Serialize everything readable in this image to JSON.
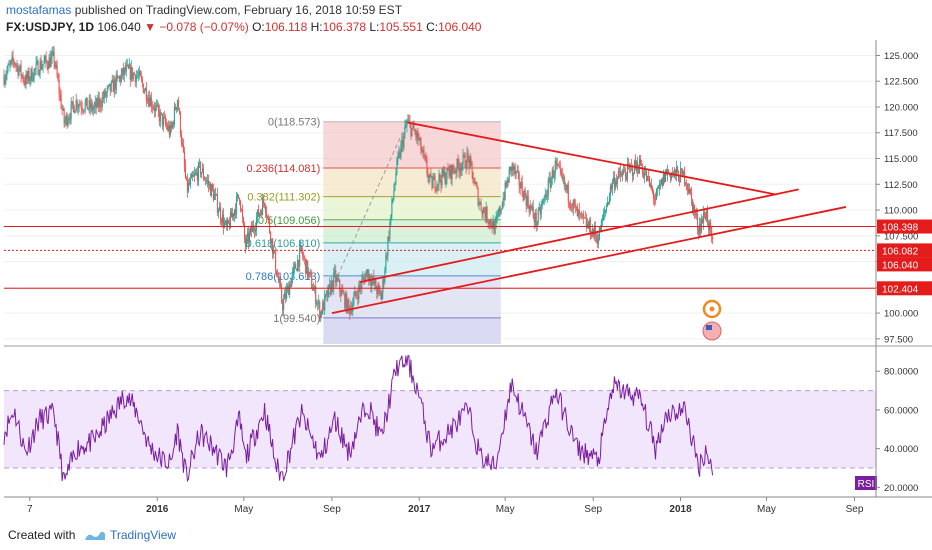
{
  "header": {
    "author": "mostafamas",
    "published_text": "published on TradingView.com, February 16, 2018 10:59 EST",
    "symbol": "FX:USDJPY, 1D",
    "last": "106.040",
    "change_arrow": "▼",
    "change": "−0.078 (−0.07%)",
    "o_label": "O:",
    "o_value": "106.118",
    "h_label": "H:",
    "h_value": "106.378",
    "l_label": "L:",
    "l_value": "105.551",
    "c_label": "C:",
    "c_value": "106.040"
  },
  "footer": {
    "created_with": "Created with",
    "brand": "TradingView"
  },
  "colors": {
    "candle_up": "#26a69a",
    "candle_down": "#ef5350",
    "trendline": "#e31b1b",
    "rsi_line": "#7b1fa2",
    "rsi_band": "#ede0fa",
    "price_tag": "#e31b1b"
  },
  "chart_data": [
    {
      "type": "candlestick",
      "symbol": "FX:USDJPY",
      "interval": "1D",
      "y_axis_ticks": [
        "125.000",
        "122.500",
        "120.000",
        "117.500",
        "115.000",
        "112.500",
        "110.000",
        "107.500",
        "105.000",
        "102.500",
        "100.000",
        "97.500"
      ],
      "ylim": [
        97.0,
        126.5
      ],
      "x_axis_ticks": [
        "7",
        "2016",
        "May",
        "Sep",
        "2017",
        "May",
        "Sep",
        "2018",
        "May",
        "Sep"
      ],
      "price_path": [
        [
          "2015-06-01",
          123.0
        ],
        [
          "2015-06-15",
          124.5
        ],
        [
          "2015-07-01",
          122.5
        ],
        [
          "2015-07-20",
          124.0
        ],
        [
          "2015-08-10",
          124.7
        ],
        [
          "2015-08-24",
          118.5
        ],
        [
          "2015-09-10",
          120.5
        ],
        [
          "2015-10-05",
          119.8
        ],
        [
          "2015-10-25",
          121.5
        ],
        [
          "2015-11-18",
          123.5
        ],
        [
          "2015-12-05",
          123.0
        ],
        [
          "2015-12-20",
          121.0
        ],
        [
          "2016-01-05",
          119.0
        ],
        [
          "2016-01-20",
          117.5
        ],
        [
          "2016-01-29",
          121.0
        ],
        [
          "2016-02-11",
          112.0
        ],
        [
          "2016-03-01",
          114.0
        ],
        [
          "2016-03-20",
          111.5
        ],
        [
          "2016-04-07",
          108.0
        ],
        [
          "2016-04-25",
          111.5
        ],
        [
          "2016-05-03",
          106.5
        ],
        [
          "2016-05-30",
          111.0
        ],
        [
          "2016-06-16",
          104.0
        ],
        [
          "2016-06-24",
          100.8
        ],
        [
          "2016-07-20",
          106.0
        ],
        [
          "2016-08-10",
          101.5
        ],
        [
          "2016-08-16",
          100.0
        ],
        [
          "2016-09-05",
          103.5
        ],
        [
          "2016-09-25",
          100.3
        ],
        [
          "2016-10-20",
          104.0
        ],
        [
          "2016-11-09",
          101.5
        ],
        [
          "2016-11-30",
          114.0
        ],
        [
          "2016-12-15",
          118.5
        ],
        [
          "2016-12-30",
          117.0
        ],
        [
          "2017-01-17",
          112.5
        ],
        [
          "2017-02-10",
          113.5
        ],
        [
          "2017-03-10",
          115.0
        ],
        [
          "2017-03-27",
          110.5
        ],
        [
          "2017-04-17",
          108.2
        ],
        [
          "2017-05-10",
          114.3
        ],
        [
          "2017-06-14",
          108.8
        ],
        [
          "2017-07-10",
          114.3
        ],
        [
          "2017-08-10",
          109.5
        ],
        [
          "2017-09-08",
          107.3
        ],
        [
          "2017-09-28",
          112.8
        ],
        [
          "2017-11-06",
          114.5
        ],
        [
          "2017-11-27",
          111.0
        ],
        [
          "2017-12-12",
          113.7
        ],
        [
          "2018-01-08",
          113.2
        ],
        [
          "2018-01-26",
          108.3
        ],
        [
          "2018-02-06",
          109.8
        ],
        [
          "2018-02-16",
          106.04
        ]
      ],
      "fibonacci": {
        "levels": [
          {
            "label": "0(118.573)",
            "price": 118.573
          },
          {
            "label": "0.236(114.081)",
            "price": 114.081
          },
          {
            "label": "0.382(111.302)",
            "price": 111.302
          },
          {
            "label": "0.5(109.056)",
            "price": 109.056
          },
          {
            "label": "0.618(106.810)",
            "price": 106.81
          },
          {
            "label": "0.786(103.613)",
            "price": 103.613
          },
          {
            "label": "1(99.540)",
            "price": 99.54
          }
        ],
        "start_date": "2016-08-20",
        "end_date": "2017-04-25"
      },
      "horizontal_lines": [
        108.398,
        106.082,
        102.404
      ],
      "trendlines": [
        {
          "from": [
            "2016-12-15",
            118.5
          ],
          "to": [
            "2018-05-15",
            111.5
          ]
        },
        {
          "from": [
            "2016-10-10",
            103.0
          ],
          "to": [
            "2018-06-15",
            112.0
          ]
        },
        {
          "from": [
            "2016-09-01",
            100.0
          ],
          "to": [
            "2018-08-20",
            110.3
          ]
        }
      ],
      "price_tags": [
        "108.398",
        "106.082",
        "106.040",
        "102.404"
      ],
      "last_price_tag": "106.040"
    },
    {
      "type": "line",
      "indicator": "RSI",
      "label": "RSI",
      "y_axis_ticks": [
        "80.0000",
        "60.0000",
        "40.0000",
        "20.0000"
      ],
      "ylim": [
        15,
        92
      ],
      "band": [
        30,
        70
      ],
      "path": [
        [
          "2015-06-01",
          48
        ],
        [
          "2015-06-15",
          60
        ],
        [
          "2015-07-01",
          38
        ],
        [
          "2015-07-20",
          55
        ],
        [
          "2015-08-10",
          58
        ],
        [
          "2015-08-24",
          22
        ],
        [
          "2015-09-10",
          40
        ],
        [
          "2015-10-05",
          44
        ],
        [
          "2015-10-25",
          55
        ],
        [
          "2015-11-18",
          68
        ],
        [
          "2015-12-05",
          58
        ],
        [
          "2015-12-20",
          42
        ],
        [
          "2016-01-05",
          35
        ],
        [
          "2016-01-20",
          32
        ],
        [
          "2016-01-29",
          50
        ],
        [
          "2016-02-11",
          25
        ],
        [
          "2016-03-01",
          48
        ],
        [
          "2016-03-20",
          40
        ],
        [
          "2016-04-07",
          30
        ],
        [
          "2016-04-25",
          55
        ],
        [
          "2016-05-03",
          35
        ],
        [
          "2016-05-30",
          60
        ],
        [
          "2016-06-16",
          30
        ],
        [
          "2016-06-24",
          26
        ],
        [
          "2016-07-20",
          58
        ],
        [
          "2016-08-10",
          40
        ],
        [
          "2016-08-16",
          34
        ],
        [
          "2016-09-05",
          55
        ],
        [
          "2016-09-25",
          38
        ],
        [
          "2016-10-20",
          64
        ],
        [
          "2016-11-09",
          45
        ],
        [
          "2016-11-30",
          82
        ],
        [
          "2016-12-15",
          86
        ],
        [
          "2016-12-30",
          70
        ],
        [
          "2017-01-17",
          40
        ],
        [
          "2017-02-10",
          48
        ],
        [
          "2017-03-10",
          60
        ],
        [
          "2017-03-27",
          36
        ],
        [
          "2017-04-17",
          30
        ],
        [
          "2017-05-10",
          74
        ],
        [
          "2017-06-14",
          38
        ],
        [
          "2017-07-10",
          70
        ],
        [
          "2017-08-10",
          40
        ],
        [
          "2017-09-08",
          34
        ],
        [
          "2017-09-28",
          72
        ],
        [
          "2017-11-06",
          66
        ],
        [
          "2017-11-27",
          40
        ],
        [
          "2017-12-12",
          58
        ],
        [
          "2018-01-08",
          60
        ],
        [
          "2018-01-26",
          30
        ],
        [
          "2018-02-06",
          40
        ],
        [
          "2018-02-16",
          24
        ]
      ]
    }
  ]
}
